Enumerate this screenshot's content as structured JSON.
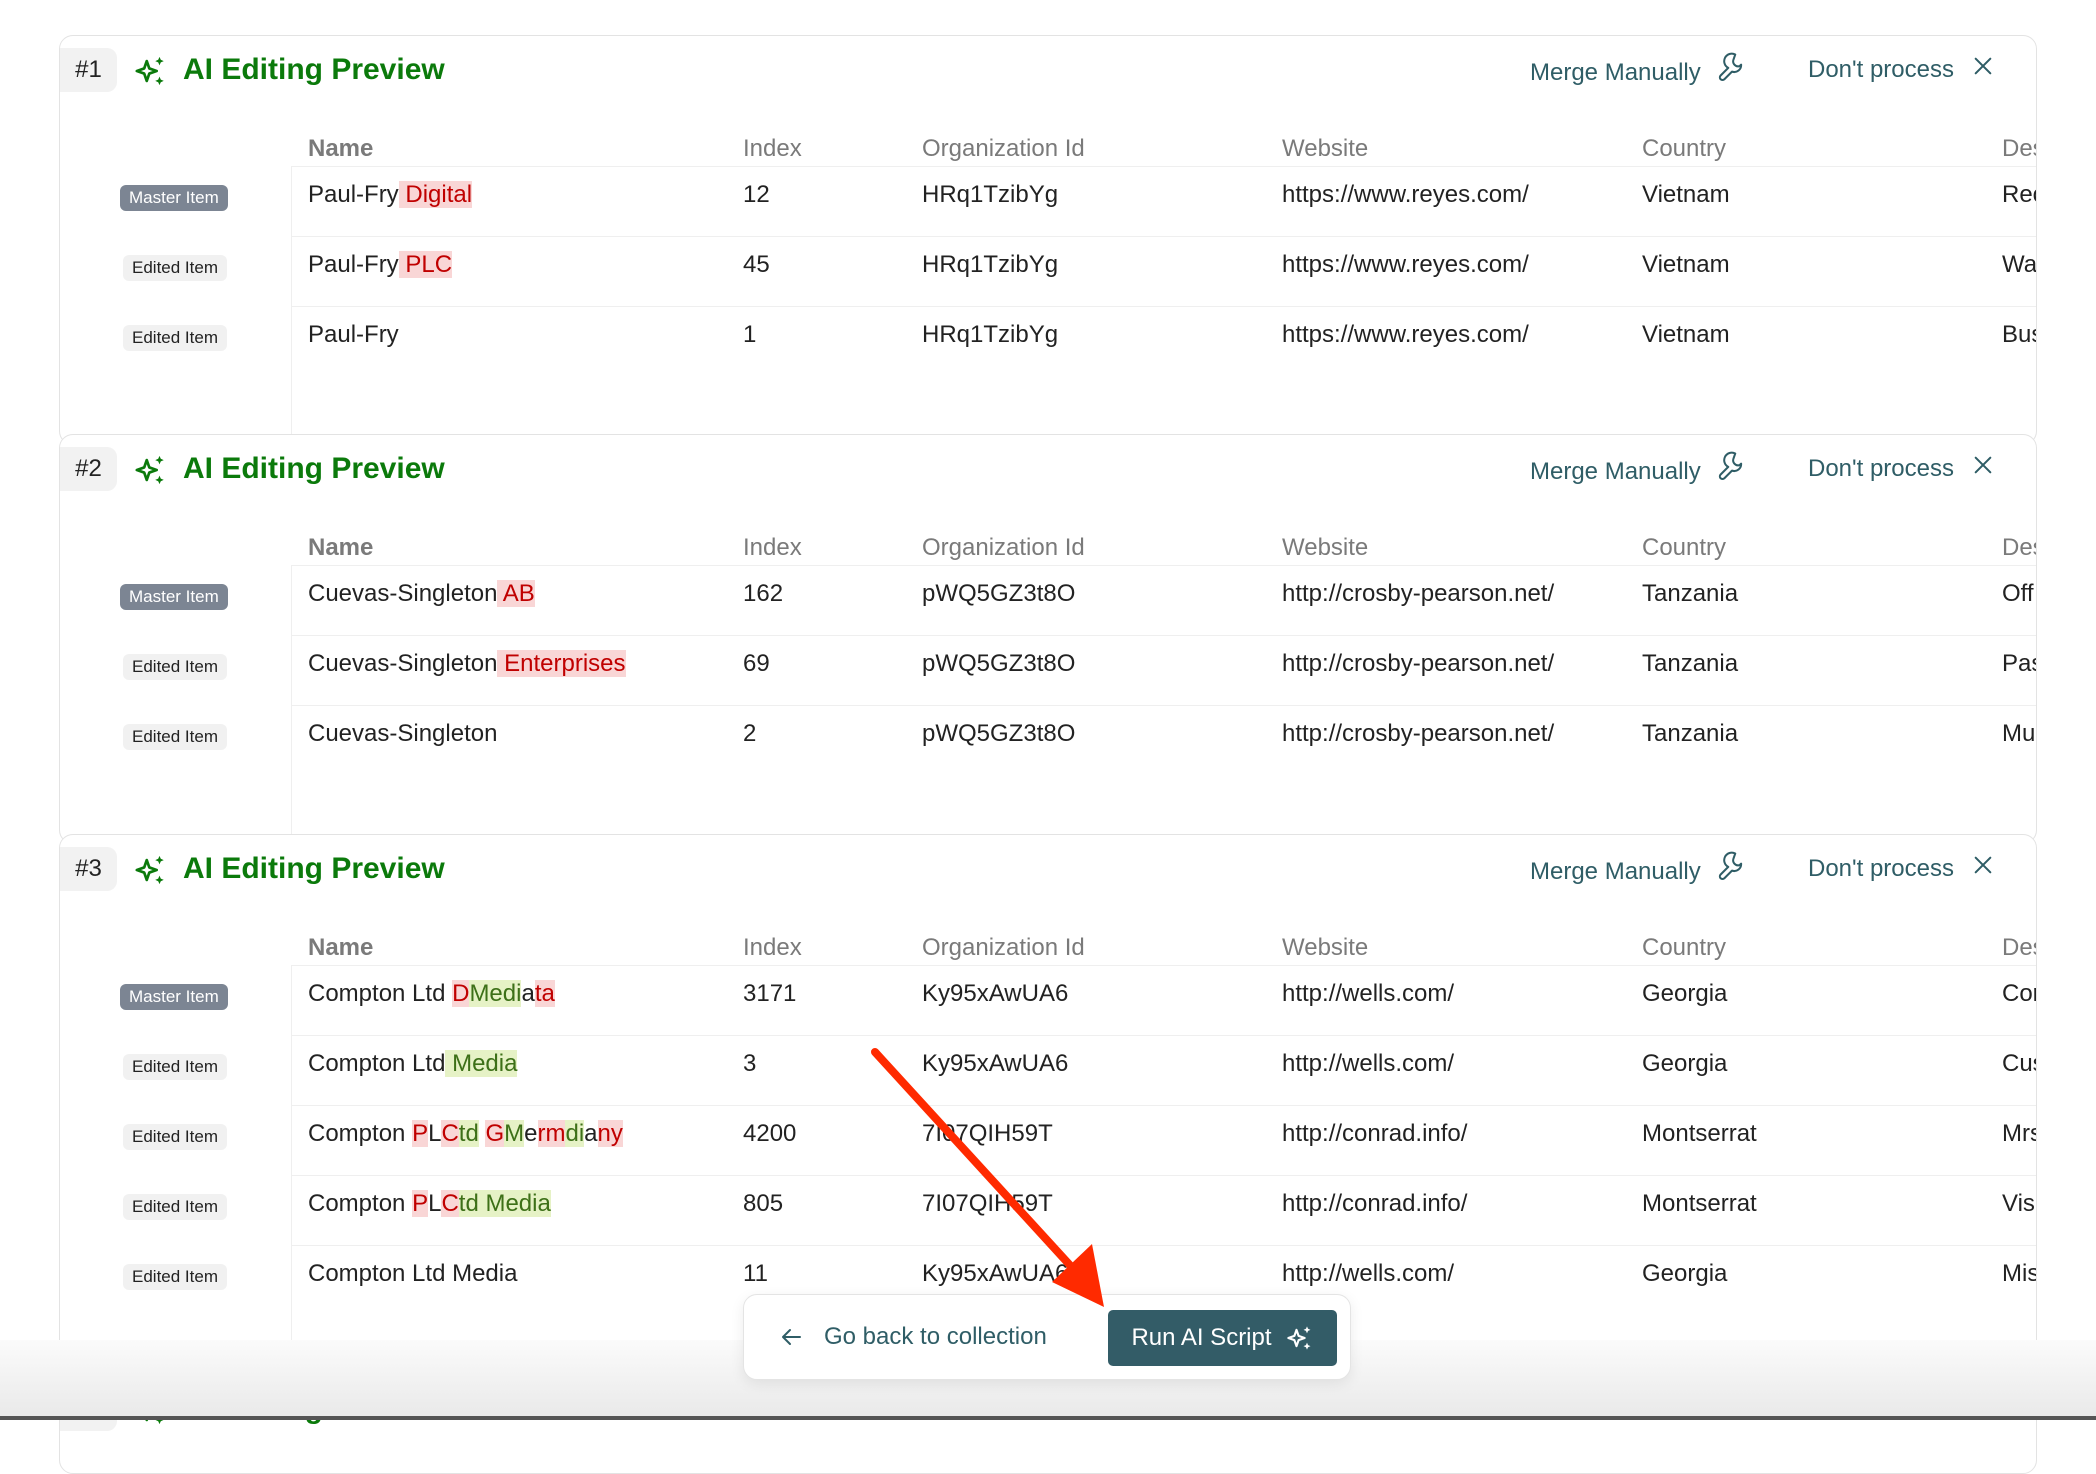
{
  "columns": [
    "Name",
    "Index",
    "Organization Id",
    "Website",
    "Country",
    "Des"
  ],
  "labels": {
    "master": "Master Item",
    "edited": "Edited Item"
  },
  "header": {
    "title": "AI Editing Preview",
    "merge": "Merge Manually",
    "dont_process": "Don't process"
  },
  "colors": {
    "title": "#0b7a0b",
    "accent": "#335c67",
    "link": "#2f5d66",
    "deleted_bg": "#f9d6d6",
    "deleted_text": "#c00000",
    "inserted_bg": "#e6f2c6",
    "inserted_text": "#3d7018",
    "annotation_arrow": "#ff2a00"
  },
  "icons": {
    "sparkle": "sparkles-icon",
    "merge": "wrench-icon",
    "dont_process": "close-icon",
    "back": "arrow-left-icon"
  },
  "cards": [
    {
      "number": "#1",
      "rows": [
        {
          "type": "master",
          "name": [
            [
              "",
              "Paul-Fry"
            ],
            [
              "del",
              " Digital"
            ]
          ],
          "index": "12",
          "org": "HRq1TzibYg",
          "website": "https://www.reyes.com/",
          "country": "Vietnam",
          "desc": "Rec"
        },
        {
          "type": "edited",
          "name": [
            [
              "",
              "Paul-Fry"
            ],
            [
              "del",
              " PLC"
            ]
          ],
          "index": "45",
          "org": "HRq1TzibYg",
          "website": "https://www.reyes.com/",
          "country": "Vietnam",
          "desc": "Wa"
        },
        {
          "type": "edited",
          "name": [
            [
              "",
              "Paul-Fry"
            ]
          ],
          "index": "1",
          "org": "HRq1TzibYg",
          "website": "https://www.reyes.com/",
          "country": "Vietnam",
          "desc": "Bus"
        }
      ]
    },
    {
      "number": "#2",
      "rows": [
        {
          "type": "master",
          "name": [
            [
              "",
              "Cuevas-Singleton"
            ],
            [
              "del",
              " AB"
            ]
          ],
          "index": "162",
          "org": "pWQ5GZ3t8O",
          "website": "http://crosby-pearson.net/",
          "country": "Tanzania",
          "desc": "Off"
        },
        {
          "type": "edited",
          "name": [
            [
              "",
              "Cuevas-Singleton"
            ],
            [
              "del",
              " Enterprises"
            ]
          ],
          "index": "69",
          "org": "pWQ5GZ3t8O",
          "website": "http://crosby-pearson.net/",
          "country": "Tanzania",
          "desc": "Pas"
        },
        {
          "type": "edited",
          "name": [
            [
              "",
              "Cuevas-Singleton"
            ]
          ],
          "index": "2",
          "org": "pWQ5GZ3t8O",
          "website": "http://crosby-pearson.net/",
          "country": "Tanzania",
          "desc": "Mu"
        }
      ]
    },
    {
      "number": "#3",
      "rows": [
        {
          "type": "master",
          "name": [
            [
              "",
              "Compton Ltd "
            ],
            [
              "del",
              "D"
            ],
            [
              "ins",
              "Medi"
            ],
            [
              "",
              "a"
            ],
            [
              "del",
              "ta"
            ]
          ],
          "index": "3171",
          "org": "Ky95xAwUA6",
          "website": "http://wells.com/",
          "country": "Georgia",
          "desc": "Cor"
        },
        {
          "type": "edited",
          "name": [
            [
              "",
              "Compton Ltd"
            ],
            [
              "ins",
              " Media"
            ]
          ],
          "index": "3",
          "org": "Ky95xAwUA6",
          "website": "http://wells.com/",
          "country": "Georgia",
          "desc": "Cus"
        },
        {
          "type": "edited",
          "name": [
            [
              "",
              "Compton "
            ],
            [
              "del",
              "P"
            ],
            [
              "",
              "L"
            ],
            [
              "del",
              "C"
            ],
            [
              "ins",
              "td"
            ],
            [
              "",
              " "
            ],
            [
              "del",
              "G"
            ],
            [
              "ins",
              "M"
            ],
            [
              "",
              "e"
            ],
            [
              "del",
              "rm"
            ],
            [
              "ins",
              "di"
            ],
            [
              "",
              "a"
            ],
            [
              "del",
              "ny"
            ]
          ],
          "index": "4200",
          "org": "7I07QIH59T",
          "website": "http://conrad.info/",
          "country": "Montserrat",
          "desc": "Mrs"
        },
        {
          "type": "edited",
          "name": [
            [
              "",
              "Compton "
            ],
            [
              "del",
              "P"
            ],
            [
              "",
              "L"
            ],
            [
              "del",
              "C"
            ],
            [
              "ins",
              "td Media"
            ]
          ],
          "index": "805",
          "org": "7I07QIH59T",
          "website": "http://conrad.info/",
          "country": "Montserrat",
          "desc": "Vis"
        },
        {
          "type": "edited",
          "name": [
            [
              "",
              "Compton Ltd Media"
            ]
          ],
          "index": "11",
          "org": "Ky95xAwUA6",
          "website": "http://wells.com/",
          "country": "Georgia",
          "desc": "Mis"
        }
      ]
    },
    {
      "number": "#4",
      "rows": []
    }
  ],
  "footer": {
    "back": "Go back to collection",
    "run": "Run AI Script"
  }
}
